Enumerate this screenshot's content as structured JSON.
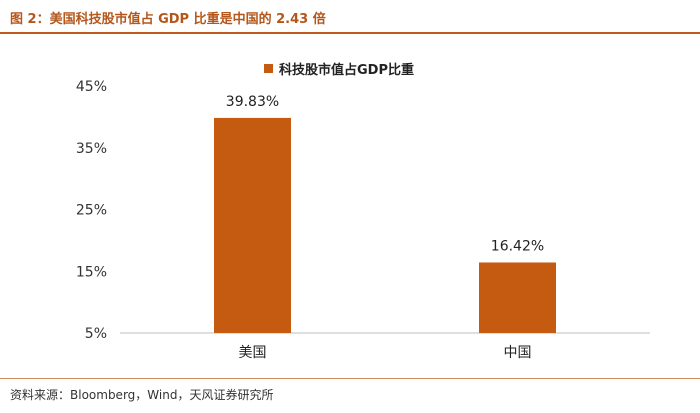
{
  "figure": {
    "title": "图 2：美国科技股市值占 GDP 比重是中国的 2.43 倍",
    "source": "资料来源：Bloomberg，Wind，天风证券研究所"
  },
  "colors": {
    "bar": "#c55a11",
    "accent": "#c0591d",
    "title": "#b4561a"
  },
  "chart_data": {
    "type": "bar",
    "categories": [
      "美国",
      "中国"
    ],
    "series": [
      {
        "name": "科技股市值占GDP比重",
        "values": [
          39.83,
          16.42
        ]
      }
    ],
    "data_labels": [
      "39.83%",
      "16.42%"
    ],
    "yticks": [
      "45%",
      "35%",
      "25%",
      "15%",
      "5%"
    ],
    "ytick_values": [
      45,
      35,
      25,
      15,
      5
    ],
    "ylim": [
      5,
      45
    ],
    "grid": false,
    "legend_position": "top"
  }
}
